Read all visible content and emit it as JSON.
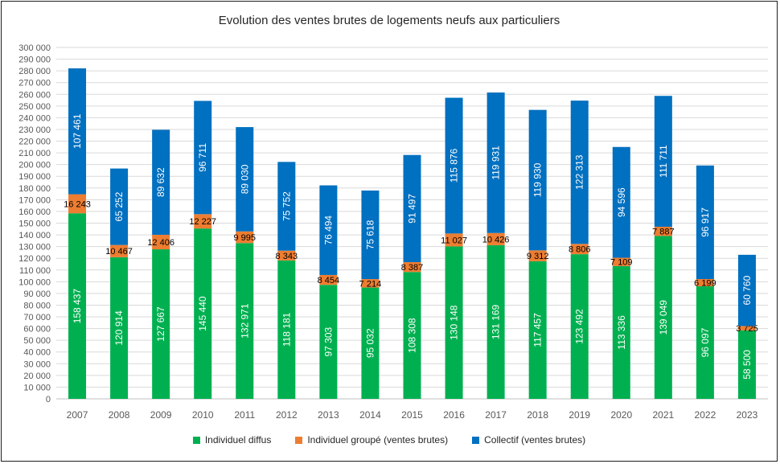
{
  "chart_data": {
    "type": "bar",
    "stacked": true,
    "title": "Evolution des ventes brutes de logements neufs aux particuliers",
    "xlabel": "",
    "ylabel": "",
    "ylim": [
      0,
      300000
    ],
    "ytick_step": 10000,
    "ytick_labels": [
      "0",
      "10 000",
      "20 000",
      "30 000",
      "40 000",
      "50 000",
      "60 000",
      "70 000",
      "80 000",
      "90 000",
      "100 000",
      "110 000",
      "120 000",
      "130 000",
      "140 000",
      "150 000",
      "160 000",
      "170 000",
      "180 000",
      "190 000",
      "200 000",
      "210 000",
      "220 000",
      "230 000",
      "240 000",
      "250 000",
      "260 000",
      "270 000",
      "280 000",
      "290 000",
      "300 000"
    ],
    "grid": true,
    "legend_position": "bottom",
    "categories": [
      "2007",
      "2008",
      "2009",
      "2010",
      "2011",
      "2012",
      "2013",
      "2014",
      "2015",
      "2016",
      "2017",
      "2018",
      "2019",
      "2020",
      "2021",
      "2022",
      "2023"
    ],
    "series": [
      {
        "name": "Individuel diffus",
        "color": "#00b050",
        "values": [
          158437,
          120914,
          127667,
          145440,
          132971,
          118181,
          97303,
          95032,
          108308,
          130148,
          131169,
          117457,
          123492,
          113336,
          139049,
          96097,
          58500
        ],
        "labels": [
          "158 437",
          "120 914",
          "127 667",
          "145 440",
          "132 971",
          "118 181",
          "97 303",
          "95 032",
          "108 308",
          "130 148",
          "131 169",
          "117 457",
          "123 492",
          "113 336",
          "139 049",
          "96 097",
          "58 500"
        ]
      },
      {
        "name": "Individuel groupé (ventes brutes)",
        "color": "#ed7d31",
        "values": [
          16243,
          10467,
          12406,
          12227,
          9995,
          8343,
          8454,
          7214,
          8387,
          11027,
          10426,
          9312,
          8806,
          7109,
          7887,
          6199,
          3725
        ],
        "labels": [
          "16 243",
          "10 467",
          "12 406",
          "12 227",
          "9 995",
          "8 343",
          "8 454",
          "7 214",
          "8 387",
          "11 027",
          "10 426",
          "9 312",
          "8 806",
          "7 109",
          "7 887",
          "6 199",
          "3 725"
        ]
      },
      {
        "name": "Collectif (ventes brutes)",
        "color": "#0070c0",
        "values": [
          107461,
          65252,
          89632,
          96711,
          89030,
          75752,
          76494,
          75618,
          91497,
          115876,
          119931,
          119930,
          122313,
          94596,
          111711,
          96917,
          60760
        ],
        "labels": [
          "107 461",
          "65 252",
          "89 632",
          "96 711",
          "89 030",
          "75 752",
          "76 494",
          "75 618",
          "91 497",
          "115 876",
          "119 931",
          "119 930",
          "122 313",
          "94 596",
          "111 711",
          "96 917",
          "60 760"
        ]
      }
    ]
  }
}
